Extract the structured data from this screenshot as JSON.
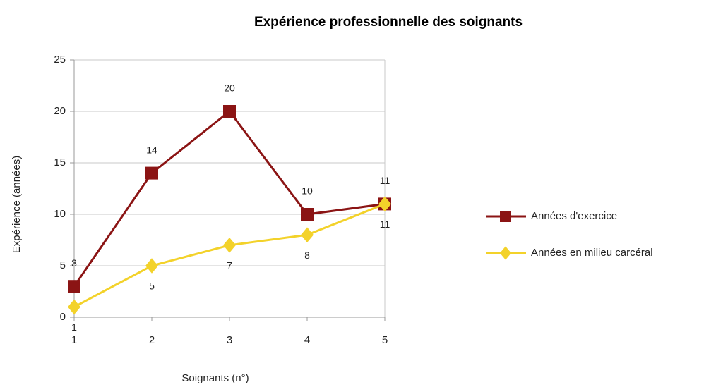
{
  "chart_data": {
    "type": "line",
    "title": "Expérience professionnelle des soignants",
    "x_label": "Soignants (n°)",
    "y_label": "Expérience (années)",
    "x": [
      1,
      2,
      3,
      4,
      5
    ],
    "xlim": [
      1,
      5
    ],
    "xticks": [
      1,
      2,
      3,
      4,
      5
    ],
    "ylim": [
      0,
      25
    ],
    "yticks": [
      0,
      5,
      10,
      15,
      20,
      25
    ],
    "grid": true,
    "legend": "right",
    "series": [
      {
        "name": "Années d'exercice",
        "color": "#8b1414",
        "marker": "square",
        "label_side": "above",
        "values": [
          3,
          14,
          20,
          10,
          11
        ]
      },
      {
        "name": "Années en milieu carcéral",
        "color": "#f3d22a",
        "marker": "diamond",
        "label_side": "below",
        "values": [
          1,
          5,
          7,
          8,
          11
        ]
      }
    ]
  }
}
